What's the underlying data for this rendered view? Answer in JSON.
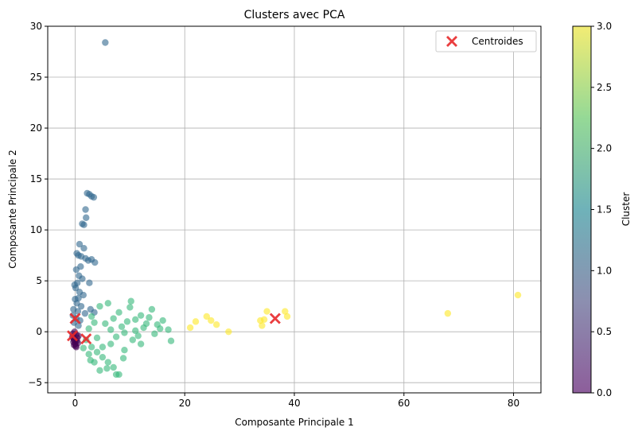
{
  "chart_data": {
    "type": "scatter",
    "title": "Clusters avec PCA",
    "xlabel": "Composante Principale 1",
    "ylabel": "Composante Principale 2",
    "xlim": [
      -5,
      85
    ],
    "ylim": [
      -6,
      30
    ],
    "xticks": [
      "0",
      "20",
      "40",
      "60",
      "80"
    ],
    "yticks": [
      "−5",
      "0",
      "5",
      "10",
      "15",
      "20",
      "25",
      "30"
    ],
    "grid": true,
    "legend": {
      "placement": "top-right",
      "label": "Centroides"
    },
    "colorbar": {
      "label": "Cluster",
      "range": [
        0,
        3
      ],
      "ticks": [
        "0.0",
        "0.5",
        "1.0",
        "1.5",
        "2.0",
        "2.5",
        "3.0"
      ],
      "colormap": "viridis"
    },
    "clusters": [
      {
        "cluster": 0,
        "color": "#440154",
        "points": [
          [
            -0.5,
            -0.5
          ],
          [
            -0.3,
            -1.0
          ],
          [
            0.0,
            -1.2
          ],
          [
            -0.2,
            -0.8
          ],
          [
            0.2,
            -0.3
          ],
          [
            -0.4,
            -0.2
          ],
          [
            0.3,
            -0.9
          ],
          [
            0.5,
            -1.1
          ],
          [
            -0.1,
            0.0
          ],
          [
            0.4,
            -0.6
          ],
          [
            0.1,
            -1.4
          ],
          [
            -0.3,
            -0.6
          ],
          [
            0.6,
            -0.4
          ],
          [
            0.0,
            -0.9
          ],
          [
            -0.2,
            -1.3
          ],
          [
            0.2,
            -1.5
          ]
        ]
      },
      {
        "cluster": 1,
        "color": "#31688e",
        "points": [
          [
            5.5,
            28.4
          ],
          [
            2.2,
            13.6
          ],
          [
            2.6,
            13.5
          ],
          [
            3.0,
            13.3
          ],
          [
            3.4,
            13.2
          ],
          [
            1.9,
            12.0
          ],
          [
            2.0,
            11.2
          ],
          [
            1.3,
            10.6
          ],
          [
            1.6,
            10.5
          ],
          [
            0.8,
            8.6
          ],
          [
            1.6,
            8.2
          ],
          [
            0.3,
            7.7
          ],
          [
            0.6,
            7.5
          ],
          [
            1.1,
            7.4
          ],
          [
            1.9,
            7.2
          ],
          [
            2.4,
            7.0
          ],
          [
            3.0,
            7.1
          ],
          [
            3.6,
            6.8
          ],
          [
            1.0,
            6.4
          ],
          [
            0.2,
            6.1
          ],
          [
            0.7,
            5.5
          ],
          [
            1.3,
            5.2
          ],
          [
            0.4,
            4.8
          ],
          [
            2.6,
            4.8
          ],
          [
            0.1,
            4.3
          ],
          [
            0.8,
            3.9
          ],
          [
            1.5,
            3.6
          ],
          [
            0.0,
            3.2
          ],
          [
            0.3,
            2.8
          ],
          [
            1.1,
            2.5
          ],
          [
            -0.3,
            2.2
          ],
          [
            0.5,
            2.0
          ],
          [
            1.8,
            1.8
          ],
          [
            -0.4,
            1.6
          ],
          [
            0.2,
            1.3
          ],
          [
            0.9,
            1.1
          ],
          [
            -0.2,
            0.9
          ],
          [
            0.6,
            0.6
          ],
          [
            2.8,
            2.2
          ],
          [
            3.5,
            1.9
          ],
          [
            -0.1,
            4.6
          ],
          [
            0.6,
            3.3
          ]
        ]
      },
      {
        "cluster": 2,
        "color": "#35b779",
        "points": [
          [
            2.0,
            -0.8
          ],
          [
            3.0,
            -1.5
          ],
          [
            4.0,
            -2.0
          ],
          [
            5.0,
            -2.5
          ],
          [
            6.0,
            -3.0
          ],
          [
            7.0,
            -3.5
          ],
          [
            7.5,
            -4.2
          ],
          [
            8.0,
            -4.2
          ],
          [
            3.5,
            -3.0
          ],
          [
            4.5,
            -3.8
          ],
          [
            2.5,
            -2.2
          ],
          [
            6.5,
            -1.2
          ],
          [
            7.5,
            -0.5
          ],
          [
            8.5,
            0.5
          ],
          [
            9.5,
            1.0
          ],
          [
            10.0,
            2.4
          ],
          [
            10.2,
            3.0
          ],
          [
            11.0,
            1.2
          ],
          [
            12.0,
            1.6
          ],
          [
            13.0,
            0.8
          ],
          [
            14.0,
            2.2
          ],
          [
            14.5,
            -0.2
          ],
          [
            15.0,
            0.7
          ],
          [
            16.0,
            1.1
          ],
          [
            17.0,
            0.2
          ],
          [
            17.5,
            -0.9
          ],
          [
            13.5,
            1.4
          ],
          [
            12.5,
            0.4
          ],
          [
            11.5,
            -0.4
          ],
          [
            9.0,
            -0.1
          ],
          [
            6.0,
            2.8
          ],
          [
            4.5,
            2.5
          ],
          [
            3.0,
            1.5
          ],
          [
            5.5,
            0.8
          ],
          [
            8.0,
            1.9
          ],
          [
            2.5,
            0.3
          ],
          [
            4.0,
            -0.6
          ],
          [
            6.5,
            0.2
          ],
          [
            10.5,
            -0.8
          ],
          [
            7.0,
            1.3
          ],
          [
            5.0,
            -1.5
          ],
          [
            3.5,
            0.9
          ],
          [
            9.0,
            -1.8
          ],
          [
            12.0,
            -1.2
          ],
          [
            15.5,
            0.3
          ],
          [
            1.5,
            -1.6
          ],
          [
            2.8,
            -2.8
          ],
          [
            5.8,
            -3.6
          ],
          [
            8.8,
            -2.6
          ],
          [
            11.0,
            0.1
          ]
        ]
      },
      {
        "cluster": 3,
        "color": "#fde725",
        "points": [
          [
            80.8,
            3.6
          ],
          [
            68.0,
            1.8
          ],
          [
            38.3,
            2.0
          ],
          [
            38.7,
            1.5
          ],
          [
            35.0,
            2.0
          ],
          [
            34.5,
            1.2
          ],
          [
            33.8,
            1.1
          ],
          [
            34.1,
            0.6
          ],
          [
            28.0,
            0.0
          ],
          [
            25.8,
            0.7
          ],
          [
            24.8,
            1.1
          ],
          [
            24.0,
            1.5
          ],
          [
            22.0,
            1.0
          ],
          [
            21.0,
            0.4
          ]
        ]
      }
    ],
    "centroids": [
      [
        -0.5,
        -0.4
      ],
      [
        0.0,
        1.3
      ],
      [
        2.0,
        -0.7
      ],
      [
        36.5,
        1.3
      ]
    ]
  }
}
